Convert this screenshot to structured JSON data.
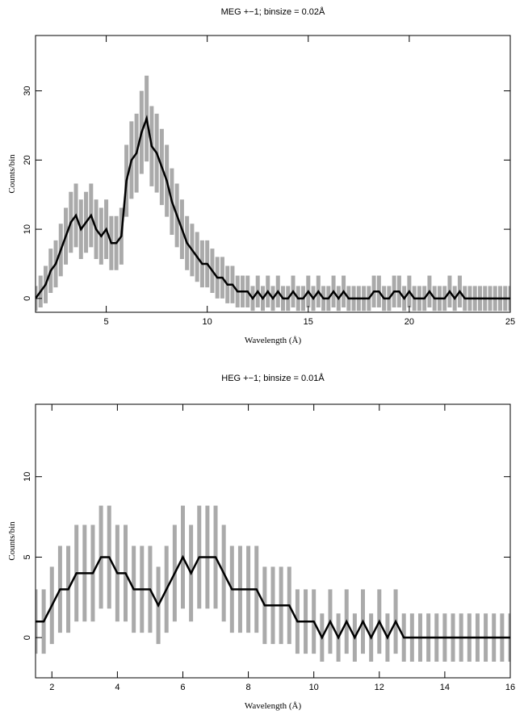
{
  "chart_data": [
    {
      "type": "line",
      "title": "MEG +−1; binsize = 0.02Å",
      "xlabel": "Wavelength (Å)",
      "ylabel": "Counts/bin",
      "xlim": [
        1.5,
        25
      ],
      "ylim": [
        -2,
        38
      ],
      "xticks": [
        5,
        10,
        15,
        20,
        25
      ],
      "yticks": [
        0,
        10,
        20,
        30
      ],
      "color": "#000000",
      "error_color": "#aaaaaa",
      "x": [
        1.5,
        1.75,
        2,
        2.25,
        2.5,
        2.75,
        3,
        3.25,
        3.5,
        3.75,
        4,
        4.25,
        4.5,
        4.75,
        5,
        5.25,
        5.5,
        5.75,
        6,
        6.25,
        6.5,
        6.75,
        7,
        7.25,
        7.5,
        7.75,
        8,
        8.25,
        8.5,
        8.75,
        9,
        9.25,
        9.5,
        9.75,
        10,
        10.25,
        10.5,
        10.75,
        11,
        11.25,
        11.5,
        11.75,
        12,
        12.25,
        12.5,
        12.75,
        13,
        13.25,
        13.5,
        13.75,
        14,
        14.25,
        14.5,
        14.75,
        15,
        15.25,
        15.5,
        15.75,
        16,
        16.25,
        16.5,
        16.75,
        17,
        17.25,
        17.5,
        17.75,
        18,
        18.25,
        18.5,
        18.75,
        19,
        19.25,
        19.5,
        19.75,
        20,
        20.25,
        20.5,
        20.75,
        21,
        21.25,
        21.5,
        21.75,
        22,
        22.25,
        22.5,
        22.75,
        23,
        23.25,
        23.5,
        23.75,
        24,
        24.25,
        24.5,
        24.75,
        25
      ],
      "values": [
        0,
        1,
        2,
        4,
        5,
        7,
        9,
        11,
        12,
        10,
        11,
        12,
        10,
        9,
        10,
        8,
        8,
        9,
        17,
        20,
        21,
        24,
        26,
        22,
        21,
        19,
        17,
        14,
        12,
        10,
        8,
        7,
        6,
        5,
        5,
        4,
        3,
        3,
        2,
        2,
        1,
        1,
        1,
        0,
        1,
        0,
        1,
        0,
        1,
        0,
        0,
        1,
        0,
        0,
        1,
        0,
        1,
        0,
        0,
        1,
        0,
        1,
        0,
        0,
        0,
        0,
        0,
        1,
        1,
        0,
        0,
        1,
        1,
        0,
        1,
        0,
        0,
        0,
        1,
        0,
        0,
        0,
        1,
        0,
        1,
        0,
        0,
        0,
        0,
        0,
        0,
        0,
        0,
        0,
        0
      ],
      "errors": [
        1.8,
        2.3,
        2.7,
        3.2,
        3.4,
        3.8,
        4.1,
        4.4,
        4.6,
        4.3,
        4.4,
        4.6,
        4.3,
        4.1,
        4.3,
        3.9,
        3.9,
        4.1,
        5.2,
        5.6,
        5.7,
        6,
        6.2,
        5.8,
        5.7,
        5.5,
        5.2,
        4.8,
        4.6,
        4.3,
        3.9,
        3.8,
        3.6,
        3.4,
        3.4,
        3.2,
        3,
        3,
        2.7,
        2.7,
        2.3,
        2.3,
        2.3,
        1.8,
        2.3,
        1.8,
        2.3,
        1.8,
        2.3,
        1.8,
        1.8,
        2.3,
        1.8,
        1.8,
        2.3,
        1.8,
        2.3,
        1.8,
        1.8,
        2.3,
        1.8,
        2.3,
        1.8,
        1.8,
        1.8,
        1.8,
        1.8,
        2.3,
        2.3,
        1.8,
        1.8,
        2.3,
        2.3,
        1.8,
        2.3,
        1.8,
        1.8,
        1.8,
        2.3,
        1.8,
        1.8,
        1.8,
        2.3,
        1.8,
        2.3,
        1.8,
        1.8,
        1.8,
        1.8,
        1.8,
        1.8,
        1.8,
        1.8,
        1.8,
        1.8
      ]
    },
    {
      "type": "line",
      "title": "HEG +−1; binsize = 0.01Å",
      "xlabel": "Wavelength (Å)",
      "ylabel": "Counts/bin",
      "xlim": [
        1.5,
        16
      ],
      "ylim": [
        -2.5,
        14.5
      ],
      "xticks": [
        2,
        4,
        6,
        8,
        10,
        12,
        14,
        16
      ],
      "yticks": [
        0,
        5,
        10
      ],
      "color": "#000000",
      "error_color": "#aaaaaa",
      "x": [
        1.5,
        1.75,
        2,
        2.25,
        2.5,
        2.75,
        3,
        3.25,
        3.5,
        3.75,
        4,
        4.25,
        4.5,
        4.75,
        5,
        5.25,
        5.5,
        5.75,
        6,
        6.25,
        6.5,
        6.75,
        7,
        7.25,
        7.5,
        7.75,
        8,
        8.25,
        8.5,
        8.75,
        9,
        9.25,
        9.5,
        9.75,
        10,
        10.25,
        10.5,
        10.75,
        11,
        11.25,
        11.5,
        11.75,
        12,
        12.25,
        12.5,
        12.75,
        13,
        13.25,
        13.5,
        13.75,
        14,
        14.25,
        14.5,
        14.75,
        15,
        15.25,
        15.5,
        15.75,
        16
      ],
      "values": [
        1,
        1,
        2,
        3,
        3,
        4,
        4,
        4,
        5,
        5,
        4,
        4,
        3,
        3,
        3,
        2,
        3,
        4,
        5,
        4,
        5,
        5,
        5,
        4,
        3,
        3,
        3,
        3,
        2,
        2,
        2,
        2,
        1,
        1,
        1,
        0,
        1,
        0,
        1,
        0,
        1,
        0,
        1,
        0,
        1,
        0,
        0,
        0,
        0,
        0,
        0,
        0,
        0,
        0,
        0,
        0,
        0,
        0,
        0
      ],
      "errors": [
        2,
        2,
        2.4,
        2.7,
        2.7,
        3,
        3,
        3,
        3.2,
        3.2,
        3,
        3,
        2.7,
        2.7,
        2.7,
        2.4,
        2.7,
        3,
        3.2,
        3,
        3.2,
        3.2,
        3.2,
        3,
        2.7,
        2.7,
        2.7,
        2.7,
        2.4,
        2.4,
        2.4,
        2.4,
        2,
        2,
        2,
        1.5,
        2,
        1.5,
        2,
        1.5,
        2,
        1.5,
        2,
        1.5,
        2,
        1.5,
        1.5,
        1.5,
        1.5,
        1.5,
        1.5,
        1.5,
        1.5,
        1.5,
        1.5,
        1.5,
        1.5,
        1.5,
        1.5
      ]
    }
  ]
}
